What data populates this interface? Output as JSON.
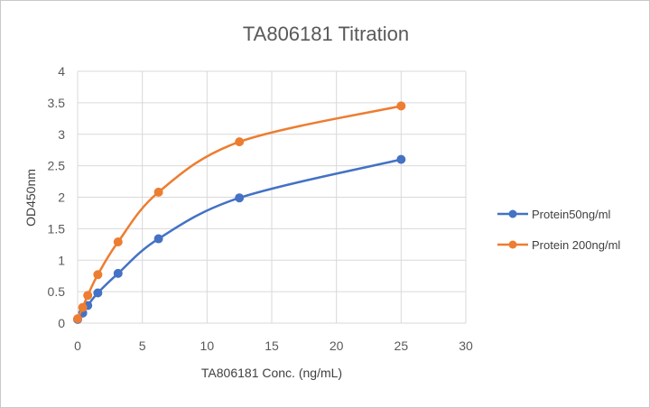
{
  "chart_data": {
    "type": "line",
    "title": "TA806181 Titration",
    "xlabel": "TA806181 Conc. (ng/mL)",
    "ylabel": "OD450nm",
    "xlim": [
      0,
      30
    ],
    "ylim": [
      0,
      4
    ],
    "x_ticks": [
      0,
      5,
      10,
      15,
      20,
      25,
      30
    ],
    "y_ticks": [
      0,
      0.5,
      1,
      1.5,
      2,
      2.5,
      3,
      3.5,
      4
    ],
    "y_tick_labels": [
      "0",
      "0.5",
      "1",
      "1.5",
      "2",
      "2.5",
      "3",
      "3.5",
      "4"
    ],
    "grid": true,
    "legend_position": "right",
    "smooth": true,
    "marker": "circle",
    "series": [
      {
        "name": "Protein50ng/ml",
        "color": "#4472c4",
        "x": [
          0,
          0.39,
          0.78,
          1.56,
          3.125,
          6.25,
          12.5,
          25
        ],
        "y": [
          0.06,
          0.16,
          0.28,
          0.48,
          0.79,
          1.34,
          1.99,
          2.6
        ]
      },
      {
        "name": "Protein 200ng/ml",
        "color": "#ed7d31",
        "x": [
          0,
          0.39,
          0.78,
          1.56,
          3.125,
          6.25,
          12.5,
          25
        ],
        "y": [
          0.07,
          0.25,
          0.44,
          0.77,
          1.29,
          2.08,
          2.88,
          3.45
        ]
      }
    ]
  }
}
